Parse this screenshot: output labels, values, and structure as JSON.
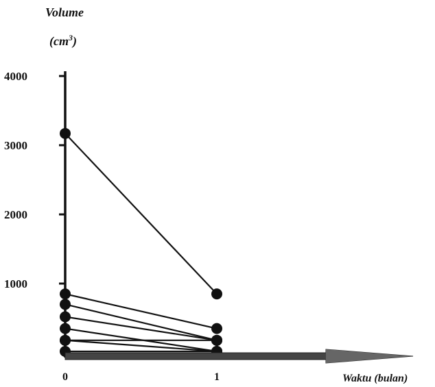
{
  "chart_data": {
    "type": "line",
    "ylabel": {
      "main": "Volume",
      "unit_open": "(cm",
      "unit_sup": "3",
      "unit_close": ")"
    },
    "xlabel": "Waktu (bulan)",
    "ylim": [
      0,
      4000
    ],
    "y_ticks": [
      "4000",
      "3000",
      "2000",
      "1000"
    ],
    "x_ticks": [
      "0",
      "1"
    ],
    "x": [
      0,
      1
    ],
    "series": [
      {
        "values": [
          3170,
          850
        ]
      },
      {
        "values": [
          850,
          350
        ]
      },
      {
        "values": [
          700,
          180
        ]
      },
      {
        "values": [
          520,
          180
        ]
      },
      {
        "values": [
          350,
          20
        ]
      },
      {
        "values": [
          180,
          180
        ]
      },
      {
        "values": [
          180,
          20
        ]
      },
      {
        "values": [
          20,
          20
        ]
      }
    ],
    "grid": false,
    "colors": {
      "line": "#111111",
      "arrow_fill": "#444444",
      "arrow_head": "#666666"
    }
  }
}
